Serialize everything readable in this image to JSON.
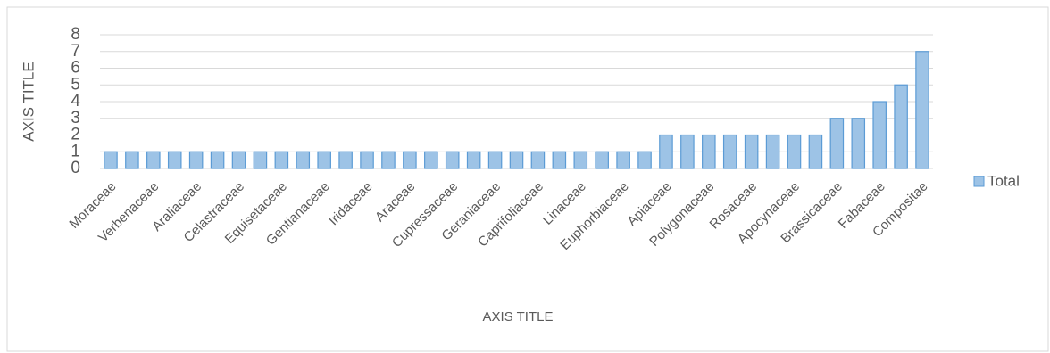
{
  "chart_data": {
    "type": "bar",
    "categories": [
      "Moraceae",
      null,
      "Verbenaceae",
      null,
      "Araliaceae",
      null,
      "Celastraceae",
      null,
      "Equisetaceae",
      null,
      "Gentianaceae",
      null,
      "Iridaceae",
      null,
      "Araceae",
      null,
      "Cupressaceae",
      null,
      "Geraniaceae",
      null,
      "Caprifoliaceae",
      null,
      "Linaceae",
      null,
      "Euphorbiaceae",
      null,
      "Apiaceae",
      null,
      "Polygonaceae",
      null,
      "Rosaceae",
      null,
      "Apocynaceae",
      null,
      "Brassicaceae",
      null,
      "Fabaceae",
      null,
      "Compositae"
    ],
    "series": [
      {
        "name": "Total",
        "color": "#9dc3e6",
        "values": [
          1,
          1,
          1,
          1,
          1,
          1,
          1,
          1,
          1,
          1,
          1,
          1,
          1,
          1,
          1,
          1,
          1,
          1,
          1,
          1,
          1,
          1,
          1,
          1,
          1,
          1,
          2,
          2,
          2,
          2,
          2,
          2,
          2,
          2,
          3,
          3,
          4,
          5,
          7
        ]
      }
    ],
    "ylim": [
      0,
      8
    ],
    "yticks": [
      0,
      1,
      2,
      3,
      4,
      5,
      6,
      7,
      8
    ],
    "grid": true,
    "xlabel": "AXIS TITLE",
    "ylabel": "AXIS TITLE",
    "legend": "right"
  }
}
